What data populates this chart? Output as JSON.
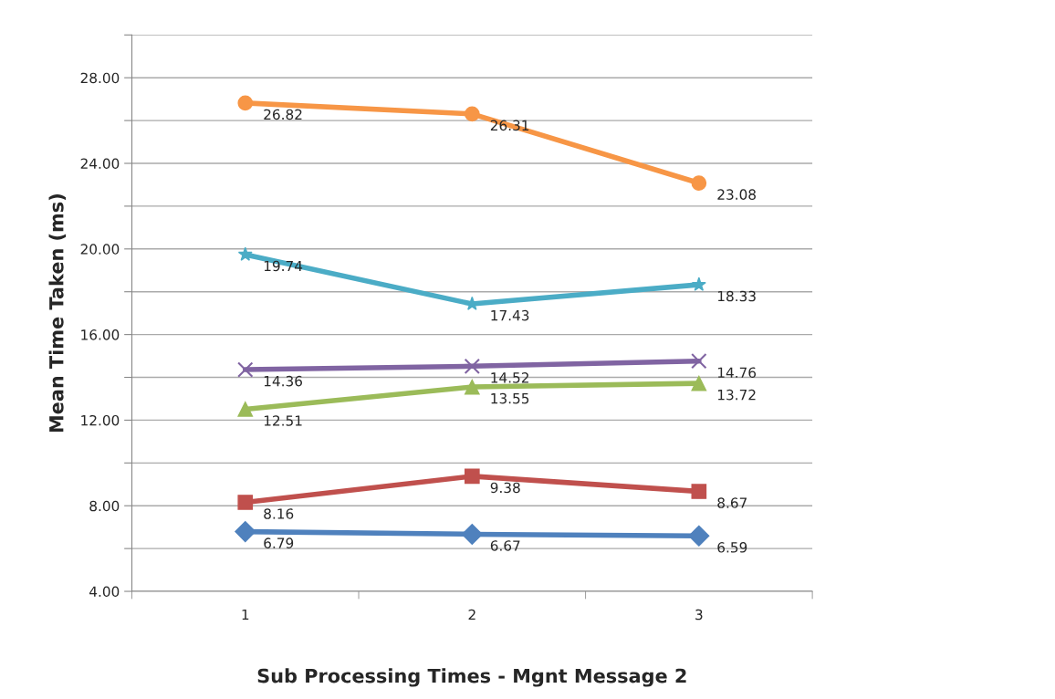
{
  "chart_data": {
    "type": "line",
    "xlabel": "Sub Processing Times - Mgnt Message 2",
    "ylabel": "Mean Time Taken (ms)",
    "categories": [
      "1",
      "2",
      "3"
    ],
    "series": [
      {
        "color": "#4f81bd",
        "marker": "diamond",
        "values": [
          6.79,
          6.67,
          6.59
        ]
      },
      {
        "color": "#c0504d",
        "marker": "square",
        "values": [
          8.16,
          9.38,
          8.67
        ]
      },
      {
        "color": "#9bbb59",
        "marker": "triangle",
        "values": [
          12.51,
          13.55,
          13.72
        ]
      },
      {
        "color": "#8064a2",
        "marker": "cross",
        "values": [
          14.36,
          14.52,
          14.76
        ]
      },
      {
        "color": "#4bacc6",
        "marker": "star",
        "values": [
          19.74,
          17.43,
          18.33
        ]
      },
      {
        "color": "#f79646",
        "marker": "circle",
        "values": [
          26.82,
          26.31,
          23.08
        ]
      }
    ],
    "ylim": [
      4,
      30
    ],
    "yticks": [
      {
        "value": 4,
        "label": "4.00"
      },
      {
        "value": 6,
        "label": null
      },
      {
        "value": 8,
        "label": "8.00"
      },
      {
        "value": 10,
        "label": null
      },
      {
        "value": 12,
        "label": "12.00"
      },
      {
        "value": 14,
        "label": null
      },
      {
        "value": 16,
        "label": "16.00"
      },
      {
        "value": 18,
        "label": null
      },
      {
        "value": 20,
        "label": "20.00"
      },
      {
        "value": 22,
        "label": null
      },
      {
        "value": 24,
        "label": "24.00"
      },
      {
        "value": 26,
        "label": null
      },
      {
        "value": 28,
        "label": "28.00"
      },
      {
        "value": 30,
        "label": null
      }
    ],
    "grid": "y",
    "legend": false,
    "data_labels": true,
    "line_style": "solid"
  }
}
